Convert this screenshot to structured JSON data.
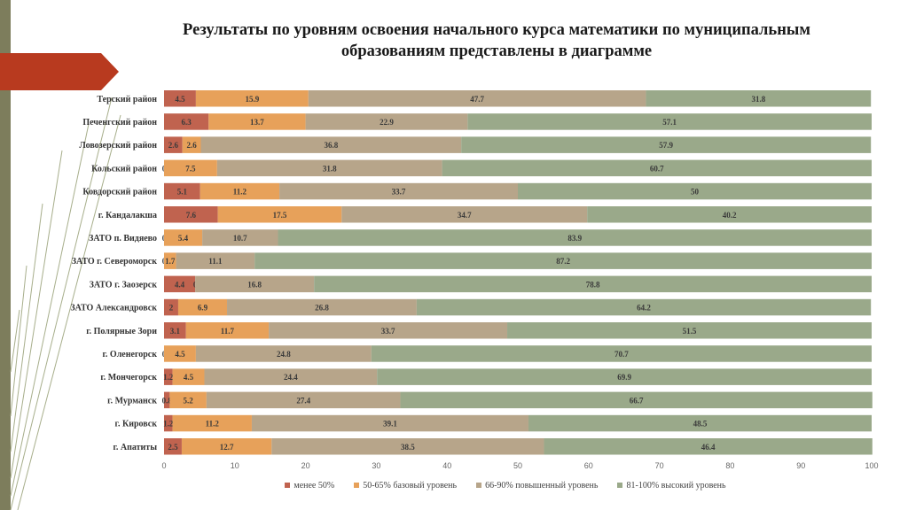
{
  "title_line1": "Результаты по уровням освоения начального курса математики по муниципальным",
  "title_line2": "образованиям представлены в диаграмме",
  "colors": {
    "series": [
      "#c0634f",
      "#e7a15a",
      "#b7a58a",
      "#9aa98a"
    ],
    "accent_red": "#b83a1f",
    "band": "#7d7d5c"
  },
  "chart_data": {
    "type": "bar",
    "orientation": "horizontal",
    "stacked": true,
    "categories": [
      "Терский район",
      "Печенгский район",
      "Ловозерский район",
      "Кольский район",
      "Ковдорский район",
      "г. Кандалакша",
      "ЗАТО п. Видяево",
      "ЗАТО г. Североморск",
      "ЗАТО г. Заозерск",
      "ЗАТО Александровск",
      "г. Полярные Зори",
      "г. Оленегорск",
      "г. Мончегорск",
      "г. Мурманск",
      "г. Кировск",
      "г. Апатиты"
    ],
    "series": [
      {
        "name": "менее 50%",
        "values": [
          4.5,
          6.3,
          2.6,
          0,
          5.1,
          7.6,
          0,
          0,
          4.4,
          2,
          3.1,
          0,
          1.2,
          0.8,
          1.2,
          2.5
        ]
      },
      {
        "name": "50-65% базовый уровень",
        "values": [
          15.9,
          13.7,
          2.6,
          7.5,
          11.2,
          17.5,
          5.4,
          1.7,
          0,
          6.9,
          11.7,
          4.5,
          4.5,
          5.2,
          11.2,
          12.7
        ]
      },
      {
        "name": "66-90% повышенный уровень",
        "values": [
          47.7,
          22.9,
          36.8,
          31.8,
          33.7,
          34.7,
          10.7,
          11.1,
          16.8,
          26.8,
          33.7,
          24.8,
          24.4,
          27.4,
          39.1,
          38.5
        ]
      },
      {
        "name": "81-100% высокий уровень",
        "values": [
          31.8,
          57.1,
          57.9,
          60.7,
          50,
          40.2,
          83.9,
          87.2,
          78.8,
          64.2,
          51.5,
          70.7,
          69.9,
          66.7,
          48.5,
          46.4
        ]
      }
    ],
    "labels": [
      [
        "4.5",
        "15.9",
        "47.7",
        "31.8"
      ],
      [
        "6.3",
        "13.7",
        "22.9",
        "57.1"
      ],
      [
        "2.6",
        "2.6",
        "36.8",
        "57.9"
      ],
      [
        "0",
        "7.5",
        "31.8",
        "60.7"
      ],
      [
        "5.1",
        "11.2",
        "33.7",
        "50"
      ],
      [
        "7.6",
        "17.5",
        "34.7",
        "40.2"
      ],
      [
        "0",
        "5.4",
        "10.7",
        "83.9"
      ],
      [
        "0",
        "1.7",
        "11.1",
        "87.2"
      ],
      [
        "4.4",
        "0",
        "16.8",
        "78.8"
      ],
      [
        "2",
        "6.9",
        "26.8",
        "64.2"
      ],
      [
        "3.1",
        "11.7",
        "33.7",
        "51.5"
      ],
      [
        "0",
        "4.5",
        "24.8",
        "70.7"
      ],
      [
        "1.2",
        "4.5",
        "24.4",
        "69.9"
      ],
      [
        "0.8",
        "5.2",
        "27.4",
        "66.7"
      ],
      [
        "1.2",
        "11.2",
        "39.1",
        "48.5"
      ],
      [
        "2.5",
        "12.7",
        "38.5",
        "46.4"
      ]
    ],
    "xlim": [
      0,
      100
    ],
    "xticks": [
      "0",
      "10",
      "20",
      "30",
      "40",
      "50",
      "60",
      "70",
      "80",
      "90",
      "100"
    ],
    "legend_position": "bottom"
  }
}
